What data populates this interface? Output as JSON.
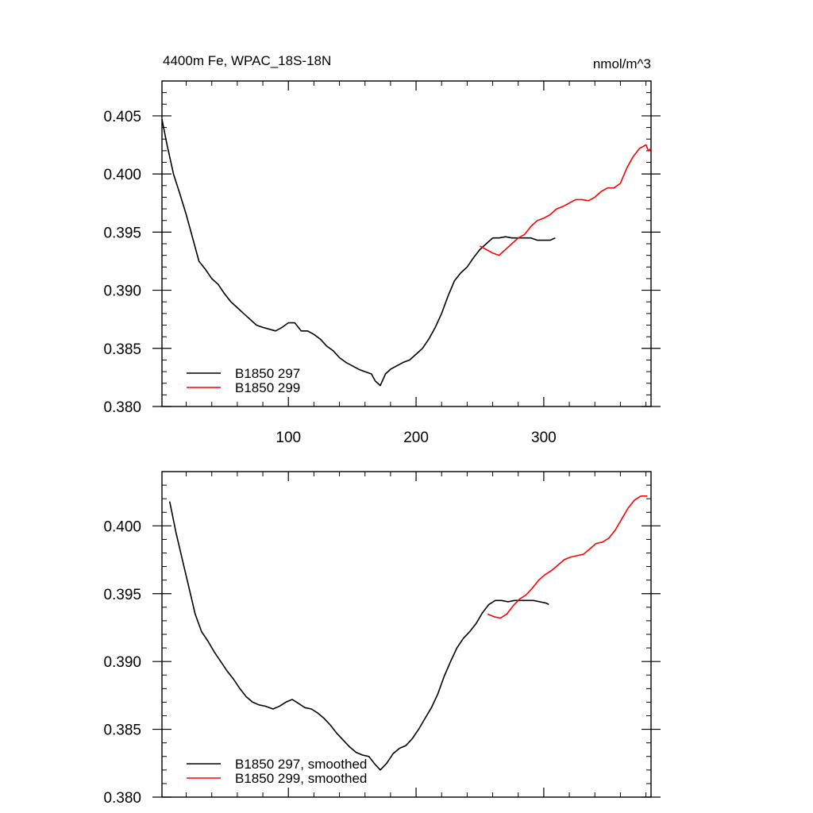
{
  "chart_data": [
    {
      "type": "line",
      "title_left": "4400m Fe, WPAC_18S-18N",
      "title_right": "nmol/m^3",
      "xlim": [
        1,
        384
      ],
      "ylim": [
        0.38,
        0.408
      ],
      "x_ticks": [
        100,
        200,
        300
      ],
      "x_tick_labels": [
        "100",
        "200",
        "300"
      ],
      "y_ticks": [
        0.38,
        0.385,
        0.39,
        0.395,
        0.4,
        0.405
      ],
      "y_tick_labels": [
        "0.380",
        "0.385",
        "0.390",
        "0.395",
        "0.400",
        "0.405"
      ],
      "legend": "bottom-left",
      "series": [
        {
          "name": "B1850 297",
          "color": "#000000",
          "points": [
            [
              1,
              0.4047
            ],
            [
              5,
              0.4025
            ],
            [
              10,
              0.4
            ],
            [
              15,
              0.3983
            ],
            [
              20,
              0.3965
            ],
            [
              25,
              0.3945
            ],
            [
              30,
              0.3925
            ],
            [
              35,
              0.3918
            ],
            [
              40,
              0.391
            ],
            [
              45,
              0.3905
            ],
            [
              50,
              0.3897
            ],
            [
              55,
              0.389
            ],
            [
              60,
              0.3885
            ],
            [
              65,
              0.388
            ],
            [
              70,
              0.3875
            ],
            [
              75,
              0.387
            ],
            [
              80,
              0.3868
            ],
            [
              90,
              0.3865
            ],
            [
              95,
              0.3868
            ],
            [
              100,
              0.3872
            ],
            [
              105,
              0.3872
            ],
            [
              110,
              0.3865
            ],
            [
              115,
              0.3865
            ],
            [
              120,
              0.3862
            ],
            [
              125,
              0.3858
            ],
            [
              130,
              0.3852
            ],
            [
              135,
              0.3848
            ],
            [
              140,
              0.3842
            ],
            [
              145,
              0.3838
            ],
            [
              150,
              0.3835
            ],
            [
              155,
              0.3832
            ],
            [
              160,
              0.383
            ],
            [
              165,
              0.3828
            ],
            [
              168,
              0.3822
            ],
            [
              172,
              0.3818
            ],
            [
              176,
              0.3828
            ],
            [
              180,
              0.3832
            ],
            [
              185,
              0.3835
            ],
            [
              190,
              0.3838
            ],
            [
              195,
              0.384
            ],
            [
              200,
              0.3845
            ],
            [
              205,
              0.385
            ],
            [
              210,
              0.3858
            ],
            [
              215,
              0.3868
            ],
            [
              220,
              0.388
            ],
            [
              225,
              0.3895
            ],
            [
              230,
              0.3908
            ],
            [
              235,
              0.3915
            ],
            [
              240,
              0.392
            ],
            [
              245,
              0.3928
            ],
            [
              250,
              0.3935
            ],
            [
              255,
              0.394
            ],
            [
              260,
              0.3945
            ],
            [
              265,
              0.3945
            ],
            [
              270,
              0.3946
            ],
            [
              275,
              0.3945
            ],
            [
              280,
              0.3945
            ],
            [
              285,
              0.3945
            ],
            [
              290,
              0.3945
            ],
            [
              295,
              0.3943
            ],
            [
              300,
              0.3943
            ],
            [
              305,
              0.3943
            ],
            [
              309,
              0.3945
            ]
          ]
        },
        {
          "name": "B1850 299",
          "color": "#ff0000",
          "points": [
            [
              250,
              0.3938
            ],
            [
              255,
              0.3935
            ],
            [
              260,
              0.3932
            ],
            [
              265,
              0.393
            ],
            [
              270,
              0.3935
            ],
            [
              275,
              0.394
            ],
            [
              280,
              0.3945
            ],
            [
              285,
              0.3948
            ],
            [
              290,
              0.3955
            ],
            [
              295,
              0.396
            ],
            [
              300,
              0.3962
            ],
            [
              305,
              0.3965
            ],
            [
              310,
              0.397
            ],
            [
              315,
              0.3972
            ],
            [
              320,
              0.3975
            ],
            [
              325,
              0.3978
            ],
            [
              330,
              0.3978
            ],
            [
              335,
              0.3977
            ],
            [
              340,
              0.398
            ],
            [
              345,
              0.3985
            ],
            [
              350,
              0.3988
            ],
            [
              355,
              0.3988
            ],
            [
              360,
              0.3992
            ],
            [
              365,
              0.4005
            ],
            [
              370,
              0.4015
            ],
            [
              375,
              0.4022
            ],
            [
              380,
              0.4025
            ],
            [
              382,
              0.402
            ],
            [
              384,
              0.4022
            ]
          ]
        }
      ]
    },
    {
      "type": "line",
      "xlim": [
        1,
        384
      ],
      "ylim": [
        0.38,
        0.404
      ],
      "x_ticks": [
        100,
        200,
        300
      ],
      "y_ticks": [
        0.38,
        0.385,
        0.39,
        0.395,
        0.4
      ],
      "y_tick_labels": [
        "0.380",
        "0.385",
        "0.390",
        "0.395",
        "0.400"
      ],
      "legend": "bottom-left",
      "series": [
        {
          "name": "B1850 297, smoothed",
          "color": "#000000",
          "points": [
            [
              7,
              0.4018
            ],
            [
              12,
              0.3995
            ],
            [
              17,
              0.3975
            ],
            [
              22,
              0.3955
            ],
            [
              27,
              0.3935
            ],
            [
              32,
              0.3922
            ],
            [
              37,
              0.3915
            ],
            [
              42,
              0.3907
            ],
            [
              47,
              0.39
            ],
            [
              52,
              0.3893
            ],
            [
              57,
              0.3887
            ],
            [
              62,
              0.388
            ],
            [
              67,
              0.3874
            ],
            [
              72,
              0.387
            ],
            [
              77,
              0.3868
            ],
            [
              82,
              0.3867
            ],
            [
              88,
              0.3865
            ],
            [
              93,
              0.3867
            ],
            [
              98,
              0.387
            ],
            [
              103,
              0.3872
            ],
            [
              108,
              0.3869
            ],
            [
              113,
              0.3866
            ],
            [
              118,
              0.3865
            ],
            [
              123,
              0.3862
            ],
            [
              128,
              0.3858
            ],
            [
              133,
              0.3853
            ],
            [
              138,
              0.3847
            ],
            [
              143,
              0.3842
            ],
            [
              148,
              0.3837
            ],
            [
              153,
              0.3833
            ],
            [
              158,
              0.3831
            ],
            [
              163,
              0.383
            ],
            [
              168,
              0.3824
            ],
            [
              172,
              0.382
            ],
            [
              177,
              0.3825
            ],
            [
              182,
              0.3832
            ],
            [
              187,
              0.3836
            ],
            [
              192,
              0.3838
            ],
            [
              197,
              0.3843
            ],
            [
              202,
              0.385
            ],
            [
              207,
              0.3858
            ],
            [
              212,
              0.3866
            ],
            [
              217,
              0.3876
            ],
            [
              222,
              0.3889
            ],
            [
              227,
              0.39
            ],
            [
              232,
              0.391
            ],
            [
              237,
              0.3917
            ],
            [
              242,
              0.3922
            ],
            [
              247,
              0.3928
            ],
            [
              252,
              0.3936
            ],
            [
              257,
              0.3942
            ],
            [
              262,
              0.3945
            ],
            [
              267,
              0.3945
            ],
            [
              272,
              0.3944
            ],
            [
              277,
              0.3945
            ],
            [
              282,
              0.3945
            ],
            [
              287,
              0.3945
            ],
            [
              292,
              0.3945
            ],
            [
              297,
              0.3944
            ],
            [
              302,
              0.3943
            ],
            [
              304,
              0.3942
            ]
          ]
        },
        {
          "name": "B1850 299, smoothed",
          "color": "#ff0000",
          "points": [
            [
              256,
              0.3935
            ],
            [
              261,
              0.3933
            ],
            [
              266,
              0.3932
            ],
            [
              271,
              0.3935
            ],
            [
              276,
              0.3941
            ],
            [
              281,
              0.3946
            ],
            [
              286,
              0.3949
            ],
            [
              291,
              0.3954
            ],
            [
              296,
              0.396
            ],
            [
              301,
              0.3964
            ],
            [
              306,
              0.3967
            ],
            [
              311,
              0.3971
            ],
            [
              316,
              0.3975
            ],
            [
              321,
              0.3977
            ],
            [
              326,
              0.3978
            ],
            [
              331,
              0.3979
            ],
            [
              336,
              0.3983
            ],
            [
              341,
              0.3987
            ],
            [
              346,
              0.3988
            ],
            [
              351,
              0.3991
            ],
            [
              356,
              0.3997
            ],
            [
              361,
              0.4005
            ],
            [
              366,
              0.4013
            ],
            [
              371,
              0.4019
            ],
            [
              376,
              0.4022
            ],
            [
              381,
              0.4022
            ]
          ]
        }
      ]
    }
  ]
}
